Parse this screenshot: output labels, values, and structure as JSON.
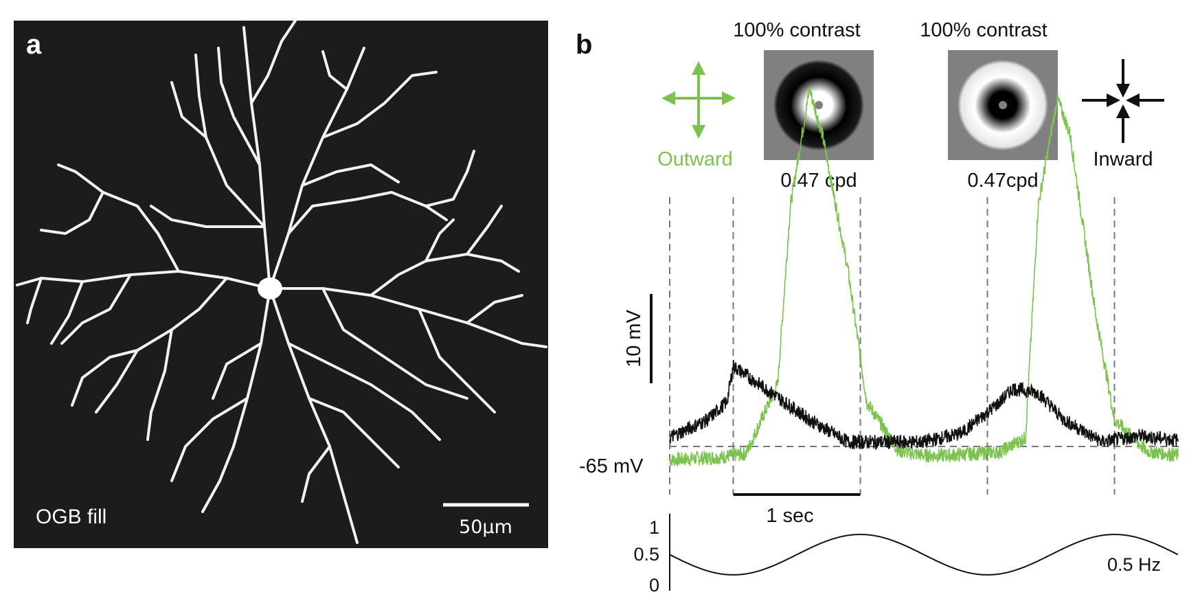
{
  "panel_a": {
    "label": "a",
    "caption": "OGB fill",
    "scale_bar_label": "50μm"
  },
  "panel_b": {
    "label": "b",
    "stimulus_left": {
      "contrast_label": "100% contrast",
      "freq_label": "0.47 cpd",
      "direction_label": "Outward",
      "arrow_color": "#7cc24f"
    },
    "stimulus_right": {
      "contrast_label": "100% contrast",
      "freq_label": "0.47cpd",
      "direction_label": "Inward",
      "arrow_color": "#111111"
    },
    "scale_v_label": "10 mV",
    "baseline_label": "-65 mV",
    "scale_t_label": "1 sec",
    "stim_ticks": [
      "1",
      "0.5",
      "0"
    ],
    "stim_freq_label": "0.5 Hz"
  },
  "colors": {
    "outward_trace": "#7cc24f",
    "inward_trace": "#111111",
    "dendrite": "#f4f4f4",
    "panel_a_bg": "#1c1c1c",
    "stimulus_bg": "#808080"
  },
  "chart_data": {
    "type": "line",
    "x_unit": "sec",
    "y_unit": "mV",
    "y_baseline": -65,
    "series": [
      {
        "name": "Outward",
        "color": "#7cc24f",
        "x": [
          0,
          0.4,
          0.6,
          0.85,
          0.95,
          1.1,
          1.2,
          1.4,
          1.55,
          1.8,
          2.0,
          2.2,
          2.4,
          2.6,
          2.8,
          2.9,
          3.05,
          3.15,
          3.35,
          3.5,
          3.75,
          4.0
        ],
        "y": [
          -66.5,
          -66.2,
          -65.8,
          -58,
          -38,
          -25,
          -30,
          -45,
          -60,
          -65.5,
          -66,
          -66,
          -65.8,
          -65.6,
          -64,
          -38,
          -26,
          -30,
          -50,
          -62,
          -65.5,
          -66
        ]
      },
      {
        "name": "Inward",
        "color": "#111111",
        "x": [
          0,
          0.3,
          0.45,
          0.5,
          0.7,
          0.9,
          1.1,
          1.4,
          1.6,
          2.0,
          2.3,
          2.6,
          2.7,
          2.9,
          3.1,
          3.4,
          3.7,
          4.0
        ],
        "y": [
          -64,
          -62,
          -60,
          -56,
          -58,
          -60,
          -62,
          -64.5,
          -64.5,
          -64.5,
          -63.5,
          -60,
          -58.5,
          -59,
          -62,
          -64.5,
          -63.8,
          -64.3
        ]
      }
    ],
    "stimulus": {
      "name": "0.5 Hz",
      "frequency_hz": 0.5,
      "ylim": [
        0,
        1
      ],
      "yticks": [
        1,
        0.5,
        0
      ]
    },
    "dashed_markers_x": [
      0,
      0.5,
      1.5,
      2.5,
      3.5
    ]
  }
}
